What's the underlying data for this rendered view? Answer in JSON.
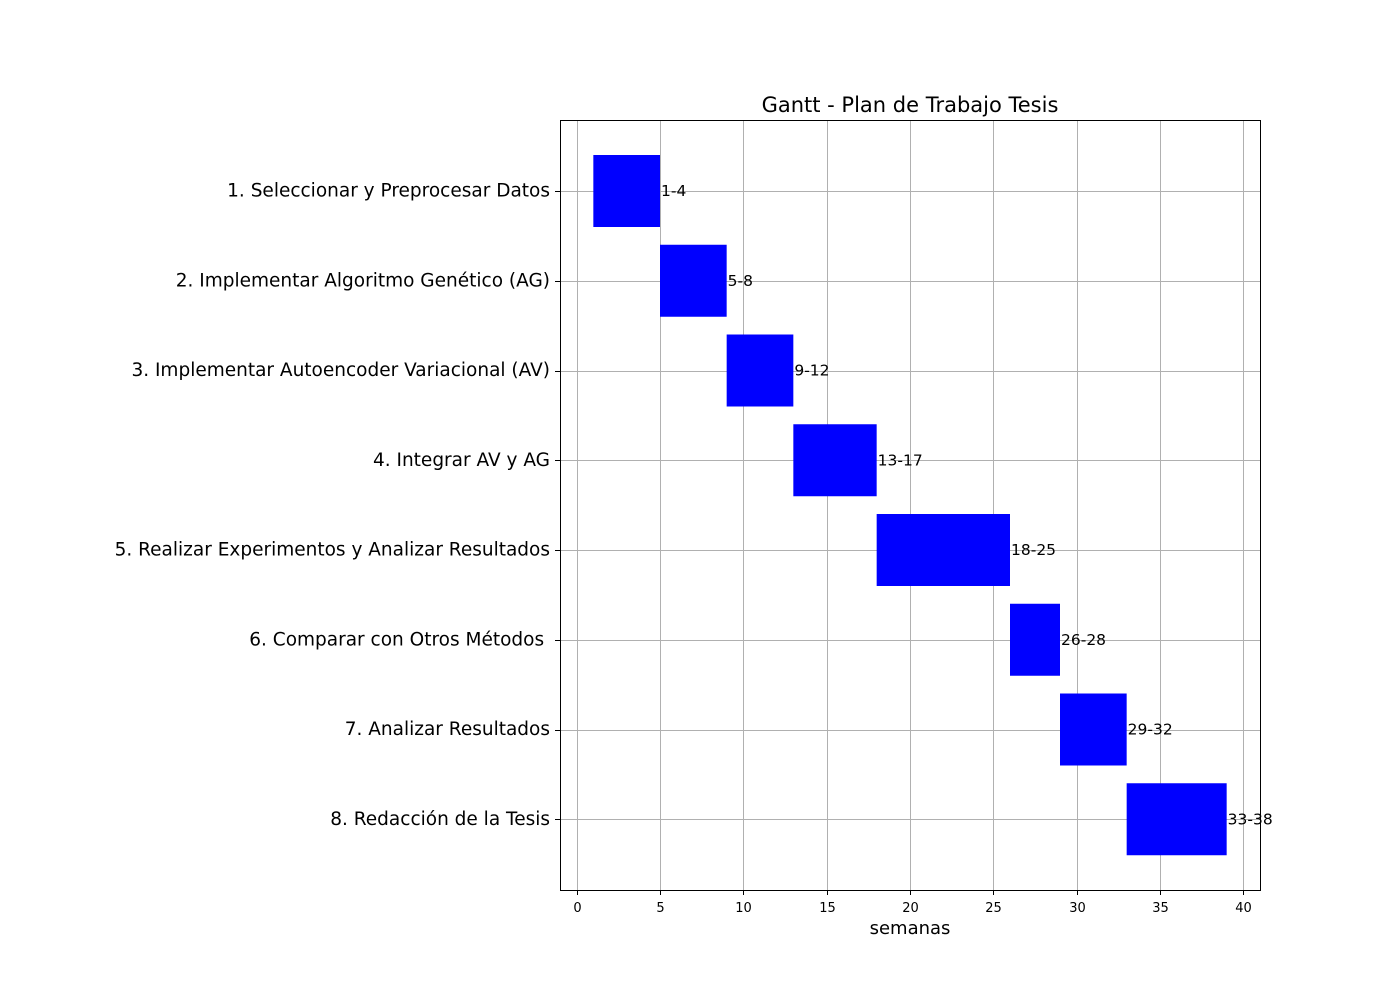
{
  "chart_data": {
    "type": "bar",
    "orientation": "horizontal",
    "title": "Gantt - Plan de Trabajo Tesis",
    "xlabel": "semanas",
    "ylabel": "",
    "xlim": [
      -1,
      41
    ],
    "xticks": [
      0,
      5,
      10,
      15,
      20,
      25,
      30,
      35,
      40
    ],
    "xtick_labels": [
      "0",
      "5",
      "10",
      "15",
      "20",
      "25",
      "30",
      "35",
      "40"
    ],
    "grid": true,
    "bar_color": "#0000ff",
    "tasks": [
      {
        "name": "1. Seleccionar y Preprocesar Datos",
        "start": 1,
        "end": 5,
        "label": "1-4"
      },
      {
        "name": "2. Implementar Algoritmo Genético (AG)",
        "start": 5,
        "end": 9,
        "label": "5-8"
      },
      {
        "name": "3. Implementar Autoencoder Variacional (AV)",
        "start": 9,
        "end": 13,
        "label": "9-12"
      },
      {
        "name": "4. Integrar AV y AG",
        "start": 13,
        "end": 18,
        "label": "13-17"
      },
      {
        "name": "5. Realizar Experimentos y Analizar Resultados",
        "start": 18,
        "end": 26,
        "label": "18-25"
      },
      {
        "name": "6. Comparar con Otros Métodos ",
        "start": 26,
        "end": 29,
        "label": "26-28"
      },
      {
        "name": "7. Analizar Resultados",
        "start": 29,
        "end": 33,
        "label": "29-32"
      },
      {
        "name": "8. Redacción de la Tesis",
        "start": 33,
        "end": 39,
        "label": "33-38"
      }
    ]
  }
}
